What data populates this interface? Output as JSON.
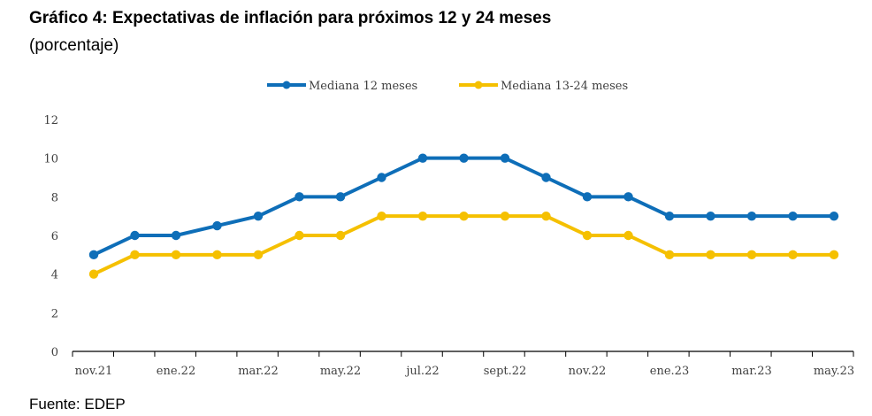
{
  "chart_data": {
    "type": "line",
    "title": "Gráfico 4: Expectativas de inflación para próximos 12 y 24 meses",
    "subtitle": "(porcentaje)",
    "source": "Fuente: EDEP",
    "x": [
      "nov.21",
      "dic.21",
      "ene.22",
      "feb.22",
      "mar.22",
      "abr.22",
      "may.22",
      "jun.22",
      "jul.22",
      "ago.22",
      "sept.22",
      "oct.22",
      "nov.22",
      "dic.22",
      "ene.23",
      "feb.23",
      "mar.23",
      "abr.23",
      "may.23"
    ],
    "x_tick_labels": [
      "nov.21",
      "ene.22",
      "mar.22",
      "may.22",
      "jul.22",
      "sept.22",
      "nov.22",
      "ene.23",
      "mar.23",
      "may.23"
    ],
    "y_ticks": [
      "0",
      "2",
      "4",
      "6",
      "8",
      "10",
      "12"
    ],
    "ylim": [
      0,
      12
    ],
    "grid": false,
    "legend_position": "top-center",
    "series": [
      {
        "name": "Mediana 12 meses",
        "color": "#0E6EB8",
        "values": [
          5,
          6,
          6,
          6.5,
          7,
          8,
          8,
          9,
          10,
          10,
          10,
          9,
          8,
          8,
          7,
          7,
          7,
          7,
          7
        ]
      },
      {
        "name": "Mediana 13-24 meses",
        "color": "#F5C000",
        "values": [
          4,
          5,
          5,
          5,
          5,
          6,
          6,
          7,
          7,
          7,
          7,
          7,
          6,
          6,
          5,
          5,
          5,
          5,
          5
        ]
      }
    ]
  }
}
